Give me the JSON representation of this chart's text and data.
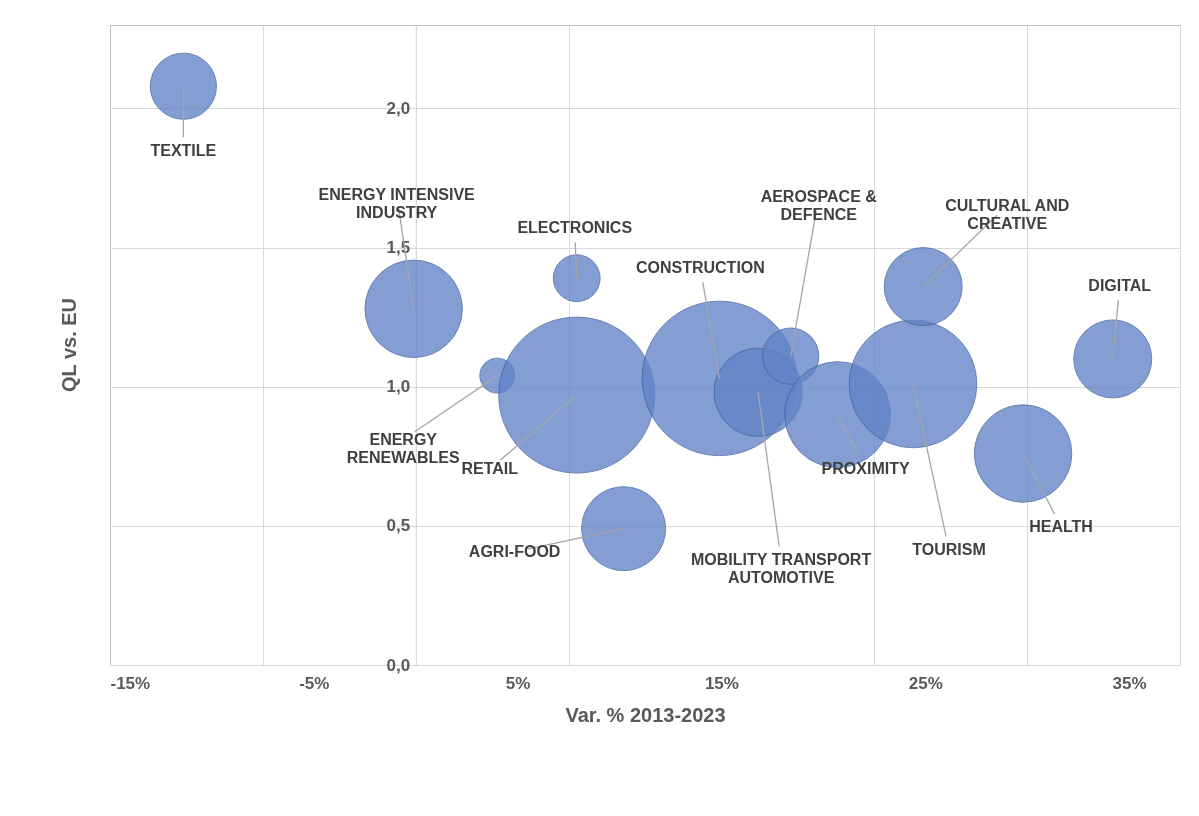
{
  "chart_data": {
    "type": "bubble",
    "xlabel": "Var. % 2013-2023",
    "ylabel": "QL vs. EU",
    "xlim": [
      -15,
      37.5
    ],
    "ylim": [
      0,
      2.3
    ],
    "xticks": [
      {
        "value": -15,
        "label": "-15%"
      },
      {
        "value": -7.5,
        "label": null
      },
      {
        "value": -5,
        "label": "-5%"
      },
      {
        "value": 0,
        "label": null
      },
      {
        "value": 5,
        "label": "5%"
      },
      {
        "value": 7.5,
        "label": null
      },
      {
        "value": 15,
        "label": "15%"
      },
      {
        "value": 22.5,
        "label": null
      },
      {
        "value": 25,
        "label": "25%"
      },
      {
        "value": 30,
        "label": null
      },
      {
        "value": 35,
        "label": "35%"
      },
      {
        "value": 37.5,
        "label": null
      }
    ],
    "yticks": [
      {
        "value": 0,
        "label": "0,0"
      },
      {
        "value": 0.5,
        "label": "0,5"
      },
      {
        "value": 1,
        "label": "1,0"
      },
      {
        "value": 1.5,
        "label": "1,5"
      },
      {
        "value": 2,
        "label": "2,0"
      }
    ],
    "grid": true,
    "series": [
      {
        "name": "TEXTILE",
        "color": "#6283c8",
        "x": [
          -11.4
        ],
        "values": [
          2.08
        ],
        "sizes": [
          0.18
        ]
      },
      {
        "name": "ENERGY INTENSIVE\nINDUSTRY",
        "color": "#6283c8",
        "x": [
          -0.1
        ],
        "values": [
          1.28
        ],
        "sizes": [
          0.39
        ]
      },
      {
        "name": "ELECTRONICS",
        "color": "#6283c8",
        "x": [
          7.9
        ],
        "values": [
          1.39
        ],
        "sizes": [
          0.09
        ]
      },
      {
        "name": "ENERGY\nRENEWABLES",
        "color": "#6283c8",
        "x": [
          4.0
        ],
        "values": [
          1.04
        ],
        "sizes": [
          0.05
        ]
      },
      {
        "name": "RETAIL",
        "color": "#6283c8",
        "x": [
          7.9
        ],
        "values": [
          0.97
        ],
        "sizes": [
          1
        ]
      },
      {
        "name": "AGRI-FOOD",
        "color": "#6283c8",
        "x": [
          10.2
        ],
        "values": [
          0.49
        ],
        "sizes": [
          0.29
        ]
      },
      {
        "name": "CONSTRUCTION",
        "color": "#6283c8",
        "x": [
          14.9
        ],
        "values": [
          1.03
        ],
        "sizes": [
          0.98
        ]
      },
      {
        "name": "MOBILITY TRANSPORT\nAUTOMOTIVE",
        "color": "#6283c8",
        "x": [
          16.8
        ],
        "values": [
          0.98
        ],
        "sizes": [
          0.32
        ]
      },
      {
        "name": "AEROSPACE &\nDEFENCE",
        "color": "#6283c8",
        "x": [
          18.4
        ],
        "values": [
          1.11
        ],
        "sizes": [
          0.13
        ]
      },
      {
        "name": "PROXIMITY",
        "color": "#6283c8",
        "x": [
          20.7
        ],
        "values": [
          0.9
        ],
        "sizes": [
          0.46
        ]
      },
      {
        "name": "TOURISM",
        "color": "#6283c8",
        "x": [
          24.4
        ],
        "values": [
          1.01
        ],
        "sizes": [
          0.67
        ]
      },
      {
        "name": "CULTURAL AND\nCREATIVE",
        "color": "#6283c8",
        "x": [
          24.9
        ],
        "values": [
          1.36
        ],
        "sizes": [
          0.25
        ]
      },
      {
        "name": "DIGITAL",
        "color": "#6283c8",
        "x": [
          34.2
        ],
        "values": [
          1.1
        ],
        "sizes": [
          0.25
        ]
      },
      {
        "name": "HEALTH",
        "color": "#6283c8",
        "x": [
          29.8
        ],
        "values": [
          0.76
        ],
        "sizes": [
          0.39
        ]
      }
    ]
  }
}
